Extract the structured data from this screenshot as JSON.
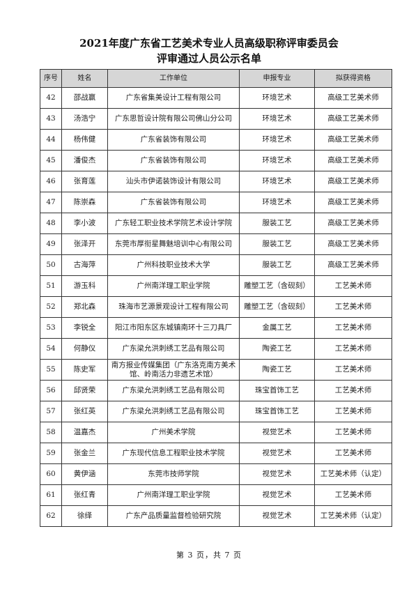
{
  "title": {
    "line1": "2021年度广东省工艺美术专业人员高级职称评审委员会",
    "line2": "评审通过人员公示名单"
  },
  "table": {
    "headers": [
      "序号",
      "姓名",
      "工作单位",
      "申报专业",
      "拟获得资格"
    ],
    "rows": [
      {
        "no": "42",
        "name": "邵战赢",
        "unit": "广东省集美设计工程有限公司",
        "major": "环境艺术",
        "qual": "高级工艺美术师"
      },
      {
        "no": "43",
        "name": "汤浩宁",
        "unit": "广东思哲设计院有限公司佛山分公司",
        "major": "环境艺术",
        "qual": "高级工艺美术师"
      },
      {
        "no": "44",
        "name": "杨伟健",
        "unit": "广东省装饰有限公司",
        "major": "环境艺术",
        "qual": "高级工艺美术师"
      },
      {
        "no": "45",
        "name": "潘俊杰",
        "unit": "广东省装饰有限公司",
        "major": "环境艺术",
        "qual": "高级工艺美术师"
      },
      {
        "no": "46",
        "name": "张育莲",
        "unit": "汕头市伊诺装饰设计有限公司",
        "major": "环境艺术",
        "qual": "高级工艺美术师"
      },
      {
        "no": "47",
        "name": "陈崇森",
        "unit": "广东省装饰有限公司",
        "major": "环境艺术",
        "qual": "高级工艺美术师"
      },
      {
        "no": "48",
        "name": "李小波",
        "unit": "广东轻工职业技术学院艺术设计学院",
        "major": "服装工艺",
        "qual": "高级工艺美术师"
      },
      {
        "no": "49",
        "name": "张泽开",
        "unit": "东莞市厚衔星舞魅培训中心有限公司",
        "major": "服装工艺",
        "qual": "高级工艺美术师"
      },
      {
        "no": "50",
        "name": "古海萍",
        "unit": "广州科技职业技术大学",
        "major": "服装工艺",
        "qual": "高级工艺美术师"
      },
      {
        "no": "51",
        "name": "游玉科",
        "unit": "广州南洋理工职业学院",
        "major": "雕塑工艺（含砚刻）",
        "qual": "工艺美术师"
      },
      {
        "no": "52",
        "name": "郑北森",
        "unit": "珠海市艺源景观设计工程有限公司",
        "major": "雕塑工艺（含砚刻）",
        "qual": "工艺美术师"
      },
      {
        "no": "53",
        "name": "李锐全",
        "unit": "阳江市阳东区东城镇南环十三刀具厂",
        "major": "金属工艺",
        "qual": "工艺美术师"
      },
      {
        "no": "54",
        "name": "何静仪",
        "unit": "广东梁允洪刺绣工艺品有限公司",
        "major": "陶瓷工艺",
        "qual": "工艺美术师"
      },
      {
        "no": "55",
        "name": "陈史军",
        "unit": "南方报业传媒集团（广东洛克南方美术馆、岭南活力非遗艺术馆）",
        "major": "陶瓷工艺",
        "qual": "工艺美术师"
      },
      {
        "no": "56",
        "name": "邱贤荣",
        "unit": "广东梁允洪刺绣工艺品有限公司",
        "major": "珠宝首饰工艺",
        "qual": "工艺美术师"
      },
      {
        "no": "57",
        "name": "张红英",
        "unit": "广东梁允洪刺绣工艺品有限公司",
        "major": "珠宝首饰工艺",
        "qual": "工艺美术师"
      },
      {
        "no": "58",
        "name": "温嘉杰",
        "unit": "广州美术学院",
        "major": "视觉艺术",
        "qual": "工艺美术师"
      },
      {
        "no": "59",
        "name": "张金兰",
        "unit": "广东现代信息工程职业技术学院",
        "major": "视觉艺术",
        "qual": "工艺美术师"
      },
      {
        "no": "60",
        "name": "黄伊涵",
        "unit": "东莞市技师学院",
        "major": "视觉艺术",
        "qual": "工艺美术师（认定）"
      },
      {
        "no": "61",
        "name": "张红青",
        "unit": "广州南洋理工职业学院",
        "major": "视觉艺术",
        "qual": "工艺美术师"
      },
      {
        "no": "62",
        "name": "徐绎",
        "unit": "广东产品质量监督检验研究院",
        "major": "视觉艺术",
        "qual": "工艺美术师（认定）"
      }
    ]
  },
  "footer": {
    "page_text": "第 3 页，共 7 页"
  }
}
